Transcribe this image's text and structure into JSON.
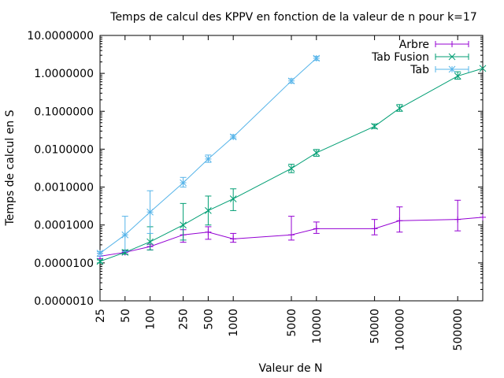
{
  "chart_data": {
    "type": "line",
    "title": "Temps de calcul des KPPV en fonction de la valeur de n pour k=17",
    "xlabel": "Valeur de N",
    "ylabel": "Temps de calcul en S",
    "x_scale": "log",
    "y_scale": "log",
    "xlim": [
      25,
      1000000
    ],
    "ylim": [
      1e-06,
      10
    ],
    "x_ticks": [
      25,
      50,
      100,
      250,
      500,
      1000,
      5000,
      10000,
      50000,
      100000,
      500000
    ],
    "x_tick_labels": [
      "25",
      "50",
      "100",
      "250",
      "500",
      "1000",
      "5000",
      "10000",
      "50000",
      "100000",
      "500000"
    ],
    "y_ticks": [
      1e-06,
      1e-05,
      0.0001,
      0.001,
      0.01,
      0.1,
      1,
      10
    ],
    "y_tick_labels": [
      "0.0000010",
      "0.0000100",
      "0.0001000",
      "0.0010000",
      "0.0100000",
      "0.1000000",
      "1.0000000",
      "10.0000000"
    ],
    "grid": false,
    "legend_position": "top-right",
    "series": [
      {
        "name": "Arbre",
        "color": "#9400d3",
        "marker": "plus",
        "points": [
          {
            "x": 25,
            "y": 1.5e-05,
            "lo": 1.3e-05,
            "hi": 1.8e-05
          },
          {
            "x": 50,
            "y": 1.9e-05,
            "lo": 1.7e-05,
            "hi": 2.1e-05
          },
          {
            "x": 100,
            "y": 2.7e-05,
            "lo": 2.2e-05,
            "hi": 3.1e-05
          },
          {
            "x": 250,
            "y": 5.5e-05,
            "lo": 3.5e-05,
            "hi": 7.5e-05
          },
          {
            "x": 500,
            "y": 6.5e-05,
            "lo": 4.2e-05,
            "hi": 9e-05
          },
          {
            "x": 1000,
            "y": 4.3e-05,
            "lo": 3.5e-05,
            "hi": 6e-05
          },
          {
            "x": 5000,
            "y": 5.5e-05,
            "lo": 4e-05,
            "hi": 0.00017
          },
          {
            "x": 10000,
            "y": 8e-05,
            "lo": 6e-05,
            "hi": 0.00012
          },
          {
            "x": 50000,
            "y": 8e-05,
            "lo": 5.5e-05,
            "hi": 0.00014
          },
          {
            "x": 100000,
            "y": 0.00013,
            "lo": 6.5e-05,
            "hi": 0.0003
          },
          {
            "x": 500000,
            "y": 0.00014,
            "lo": 7e-05,
            "hi": 0.00045
          },
          {
            "x": 1000000,
            "y": 0.00016,
            "lo": 0.00016,
            "hi": 0.00016
          }
        ]
      },
      {
        "name": "Tab Fusion",
        "color": "#009e73",
        "marker": "cross",
        "points": [
          {
            "x": 25,
            "y": 1.1e-05,
            "lo": 1e-05,
            "hi": 1.2e-05
          },
          {
            "x": 50,
            "y": 1.9e-05,
            "lo": 1.7e-05,
            "hi": 2.2e-05
          },
          {
            "x": 100,
            "y": 3.6e-05,
            "lo": 2.2e-05,
            "hi": 9e-05
          },
          {
            "x": 250,
            "y": 0.0001,
            "lo": 4e-05,
            "hi": 0.00037
          },
          {
            "x": 500,
            "y": 0.00024,
            "lo": 0.0001,
            "hi": 0.00058
          },
          {
            "x": 1000,
            "y": 0.00049,
            "lo": 0.00024,
            "hi": 0.0009
          },
          {
            "x": 5000,
            "y": 0.0031,
            "lo": 0.0024,
            "hi": 0.004
          },
          {
            "x": 10000,
            "y": 0.008,
            "lo": 0.0065,
            "hi": 0.0098
          },
          {
            "x": 50000,
            "y": 0.04,
            "lo": 0.035,
            "hi": 0.046
          },
          {
            "x": 100000,
            "y": 0.12,
            "lo": 0.1,
            "hi": 0.15
          },
          {
            "x": 500000,
            "y": 0.85,
            "lo": 0.7,
            "hi": 1.1
          },
          {
            "x": 1000000,
            "y": 1.35,
            "lo": 1.35,
            "hi": 1.35
          }
        ]
      },
      {
        "name": "Tab",
        "color": "#56b4e9",
        "marker": "star",
        "points": [
          {
            "x": 25,
            "y": 1.8e-05,
            "lo": 1.5e-05,
            "hi": 2e-05
          },
          {
            "x": 50,
            "y": 5.5e-05,
            "lo": 2e-05,
            "hi": 0.00017
          },
          {
            "x": 100,
            "y": 0.00022,
            "lo": 6e-05,
            "hi": 0.0008
          },
          {
            "x": 250,
            "y": 0.0013,
            "lo": 0.001,
            "hi": 0.0018
          },
          {
            "x": 500,
            "y": 0.0055,
            "lo": 0.0045,
            "hi": 0.007
          },
          {
            "x": 1000,
            "y": 0.021,
            "lo": 0.019,
            "hi": 0.024
          },
          {
            "x": 5000,
            "y": 0.63,
            "lo": 0.55,
            "hi": 0.72
          },
          {
            "x": 10000,
            "y": 2.5,
            "lo": 2.2,
            "hi": 2.8
          }
        ]
      }
    ]
  }
}
